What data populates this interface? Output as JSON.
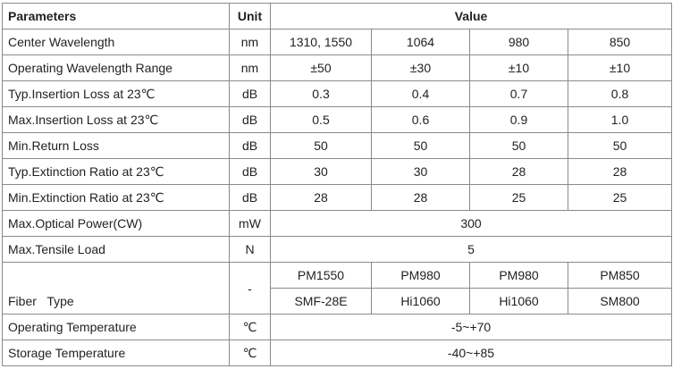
{
  "table": {
    "header": [
      "Parameters",
      "Unit",
      "Value"
    ],
    "rows": [
      {
        "label": "Center Wavelength",
        "unit": "nm",
        "values": [
          "1310, 1550",
          "1064",
          "980",
          "850"
        ]
      },
      {
        "label": "Operating Wavelength Range",
        "unit": "nm",
        "values": [
          "±50",
          "±30",
          "±10",
          "±10"
        ]
      },
      {
        "label": "Typ.Insertion Loss at 23℃",
        "unit": "dB",
        "values": [
          "0.3",
          "0.4",
          "0.7",
          "0.8"
        ]
      },
      {
        "label": "Max.Insertion Loss at 23℃",
        "unit": "dB",
        "values": [
          "0.5",
          "0.6",
          "0.9",
          "1.0"
        ]
      },
      {
        "label": "Min.Return Loss",
        "unit": "dB",
        "values": [
          "50",
          "50",
          "50",
          "50"
        ]
      },
      {
        "label": "Typ.Extinction Ratio at 23℃",
        "unit": "dB",
        "values": [
          "30",
          "30",
          "28",
          "28"
        ]
      },
      {
        "label": "Min.Extinction Ratio at 23℃",
        "unit": "dB",
        "values": [
          "28",
          "28",
          "25",
          "25"
        ]
      },
      {
        "label": "Max.Optical Power(CW)",
        "unit": "mW",
        "values": [
          "300"
        ]
      },
      {
        "label": "Max.Tensile Load",
        "unit": "N",
        "values": [
          "5"
        ]
      },
      {
        "label": "Fiber   Type",
        "unit": "-",
        "lines": [
          [
            "PM1550",
            "PM980",
            "PM980",
            "PM850"
          ],
          [
            "SMF-28E",
            "Hi1060",
            "Hi1060",
            "SM800"
          ]
        ]
      },
      {
        "label": "Operating Temperature",
        "unit": "℃",
        "values": [
          "-5~+70"
        ]
      },
      {
        "label": "Storage Temperature",
        "unit": "℃",
        "values": [
          "-40~+85"
        ]
      }
    ]
  }
}
